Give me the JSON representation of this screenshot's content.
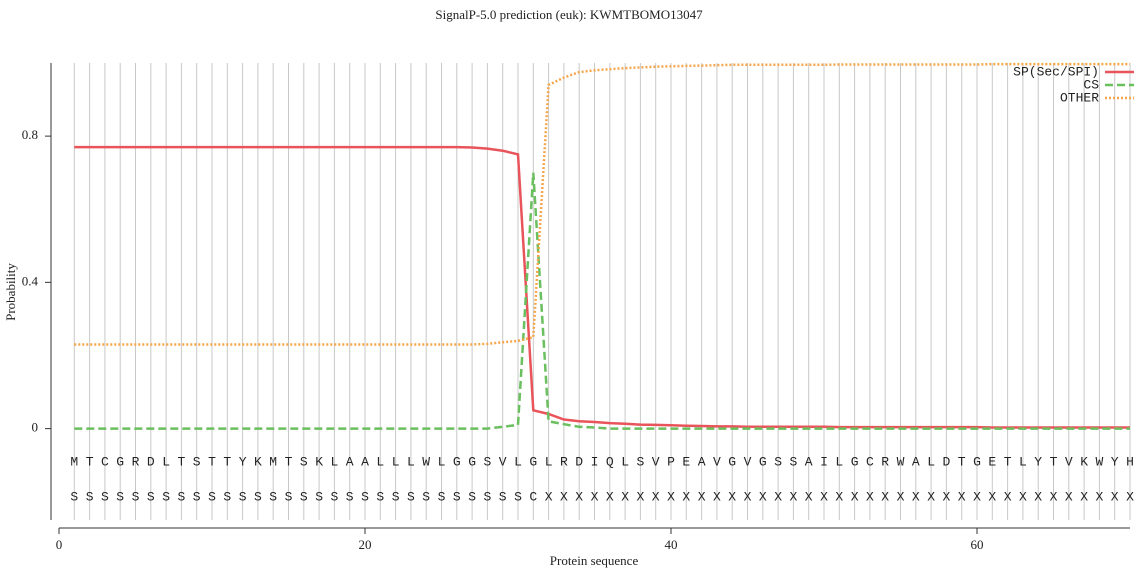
{
  "chart_data": {
    "type": "line",
    "title": "SignalP-5.0 prediction (euk):  KWMTBOMO13047",
    "x_label": "Protein sequence",
    "y_label": "Probability",
    "x": [
      1,
      2,
      3,
      4,
      5,
      6,
      7,
      8,
      9,
      10,
      11,
      12,
      13,
      14,
      15,
      16,
      17,
      18,
      19,
      20,
      21,
      22,
      23,
      24,
      25,
      26,
      27,
      28,
      29,
      30,
      31,
      32,
      33,
      34,
      35,
      36,
      37,
      38,
      39,
      40,
      41,
      42,
      43,
      44,
      45,
      46,
      47,
      48,
      49,
      50,
      51,
      52,
      53,
      54,
      55,
      56,
      57,
      58,
      59,
      60,
      61,
      62,
      63,
      64,
      65,
      66,
      67,
      68,
      69,
      70
    ],
    "residues": [
      "M",
      "T",
      "C",
      "G",
      "R",
      "D",
      "L",
      "T",
      "S",
      "T",
      "T",
      "Y",
      "K",
      "M",
      "T",
      "S",
      "K",
      "L",
      "A",
      "A",
      "L",
      "L",
      "L",
      "W",
      "L",
      "G",
      "G",
      "S",
      "V",
      "L",
      "G",
      "L",
      "R",
      "D",
      "I",
      "Q",
      "L",
      "S",
      "V",
      "P",
      "E",
      "A",
      "V",
      "G",
      "V",
      "G",
      "S",
      "S",
      "A",
      "I",
      "L",
      "G",
      "C",
      "R",
      "W",
      "A",
      "L",
      "D",
      "T",
      "G",
      "E",
      "T",
      "L",
      "Y",
      "T",
      "V",
      "K",
      "W",
      "Y",
      "H"
    ],
    "predicted": [
      "S",
      "S",
      "S",
      "S",
      "S",
      "S",
      "S",
      "S",
      "S",
      "S",
      "S",
      "S",
      "S",
      "S",
      "S",
      "S",
      "S",
      "S",
      "S",
      "S",
      "S",
      "S",
      "S",
      "S",
      "S",
      "S",
      "S",
      "S",
      "S",
      "S",
      "C",
      "X",
      "X",
      "X",
      "X",
      "X",
      "X",
      "X",
      "X",
      "X",
      "X",
      "X",
      "X",
      "X",
      "X",
      "X",
      "X",
      "X",
      "X",
      "X",
      "X",
      "X",
      "X",
      "X",
      "X",
      "X",
      "X",
      "X",
      "X",
      "X",
      "X",
      "X",
      "X",
      "X",
      "X",
      "X",
      "X",
      "X",
      "X",
      "X"
    ],
    "series": [
      {
        "name": "SP(Sec/SPI)",
        "color": "#e8545a",
        "dash": "solid",
        "values": [
          0.77,
          0.77,
          0.77,
          0.77,
          0.77,
          0.77,
          0.77,
          0.77,
          0.77,
          0.77,
          0.77,
          0.77,
          0.77,
          0.77,
          0.77,
          0.77,
          0.77,
          0.77,
          0.77,
          0.77,
          0.77,
          0.77,
          0.77,
          0.77,
          0.77,
          0.77,
          0.769,
          0.766,
          0.76,
          0.75,
          0.05,
          0.04,
          0.025,
          0.02,
          0.018,
          0.015,
          0.013,
          0.011,
          0.01,
          0.009,
          0.008,
          0.007,
          0.006,
          0.006,
          0.005,
          0.005,
          0.005,
          0.005,
          0.005,
          0.005,
          0.004,
          0.004,
          0.004,
          0.004,
          0.004,
          0.004,
          0.004,
          0.004,
          0.004,
          0.004,
          0.003,
          0.003,
          0.003,
          0.003,
          0.003,
          0.003,
          0.003,
          0.003,
          0.003,
          0.003
        ]
      },
      {
        "name": "CS",
        "color": "#6abf5e",
        "dash": "dashed",
        "values": [
          0,
          0,
          0,
          0,
          0,
          0,
          0,
          0,
          0,
          0,
          0,
          0,
          0,
          0,
          0,
          0,
          0,
          0,
          0,
          0,
          0,
          0,
          0,
          0,
          0,
          0,
          0,
          0,
          0.005,
          0.01,
          0.7,
          0.02,
          0.012,
          0.005,
          0.003,
          0,
          0,
          0,
          0,
          0,
          0,
          0,
          0,
          0,
          0,
          0,
          0,
          0,
          0,
          0,
          0,
          0,
          0,
          0,
          0,
          0,
          0,
          0,
          0,
          0,
          0,
          0,
          0,
          0,
          0,
          0,
          0,
          0,
          0,
          0
        ]
      },
      {
        "name": "OTHER",
        "color": "#f5a64a",
        "dash": "dotted",
        "values": [
          0.23,
          0.23,
          0.23,
          0.23,
          0.23,
          0.23,
          0.23,
          0.23,
          0.23,
          0.23,
          0.23,
          0.23,
          0.23,
          0.23,
          0.23,
          0.23,
          0.23,
          0.23,
          0.23,
          0.23,
          0.23,
          0.23,
          0.23,
          0.23,
          0.23,
          0.23,
          0.23,
          0.232,
          0.236,
          0.24,
          0.25,
          0.94,
          0.96,
          0.975,
          0.98,
          0.983,
          0.986,
          0.988,
          0.99,
          0.991,
          0.992,
          0.993,
          0.994,
          0.995,
          0.995,
          0.995,
          0.995,
          0.995,
          0.995,
          0.995,
          0.996,
          0.996,
          0.996,
          0.996,
          0.996,
          0.996,
          0.996,
          0.996,
          0.996,
          0.996,
          0.997,
          0.997,
          0.997,
          0.997,
          0.997,
          0.997,
          0.997,
          0.997,
          0.997,
          0.997
        ]
      }
    ],
    "xlim": [
      0,
      70
    ],
    "xticks": [
      0,
      20,
      40,
      60
    ],
    "ylim": [
      -0.25,
      1
    ],
    "yticks": [
      0,
      0.4,
      0.8
    ],
    "legend": "top-right"
  }
}
